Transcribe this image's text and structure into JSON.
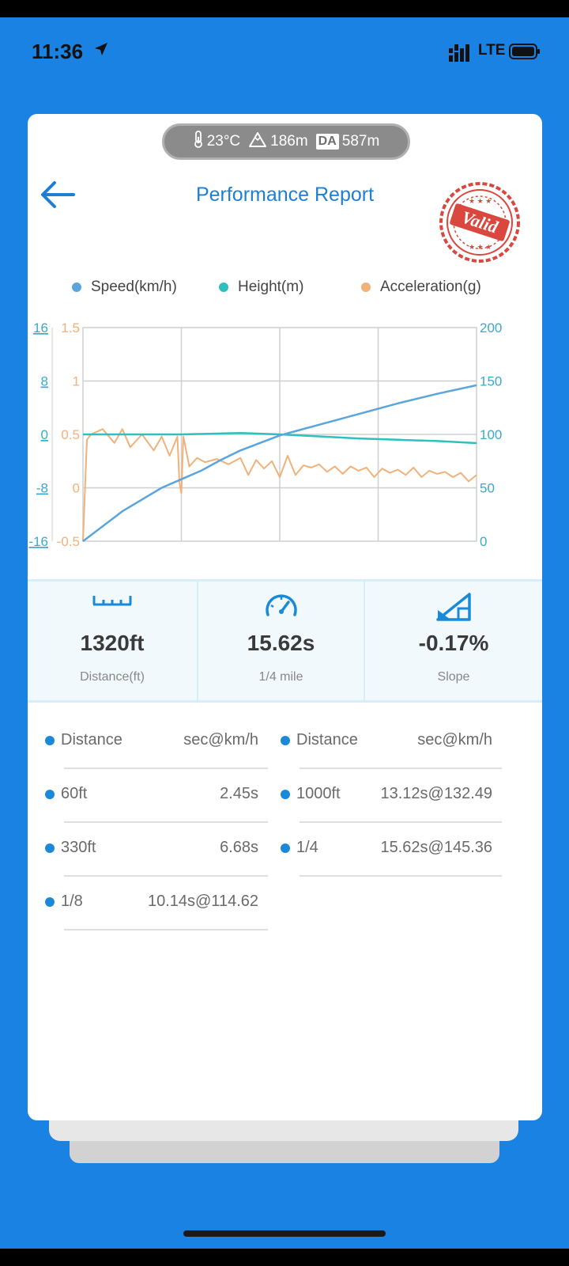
{
  "status_bar": {
    "time": "11:36",
    "network": "LTE"
  },
  "conditions": {
    "temperature": "23°C",
    "altitude": "186m",
    "density_altitude_label": "DA",
    "density_altitude": "587m"
  },
  "header": {
    "title": "Performance Report",
    "stamp_text": "Valid"
  },
  "legend": {
    "speed": "Speed(km/h)",
    "height": "Height(m)",
    "acceleration": "Acceleration(g)"
  },
  "colors": {
    "speed": "#5aa5dc",
    "height": "#2ec0bc",
    "acceleration": "#f0b27a",
    "accent": "#1a82e2"
  },
  "chart_data": {
    "type": "line",
    "x_ticks": 4,
    "left_axis_height_ticks": [
      "16",
      "8",
      "0",
      "-8",
      "-16"
    ],
    "left_axis_accel_ticks": [
      "1.5",
      "1",
      "0.5",
      "0",
      "-0.5"
    ],
    "right_axis_speed_ticks": [
      "200",
      "150",
      "100",
      "50",
      "0"
    ],
    "speed_range": [
      0,
      200
    ],
    "height_range": [
      -16,
      16
    ],
    "accel_range": [
      -0.5,
      1.5
    ],
    "series": [
      {
        "name": "Speed(km/h)",
        "axis": "right",
        "x": [
          0,
          0.05,
          0.1,
          0.15,
          0.2,
          0.25,
          0.3,
          0.35,
          0.4,
          0.5,
          0.6,
          0.7,
          0.8,
          0.9,
          1.0
        ],
        "values": [
          0,
          14,
          28,
          39,
          50,
          58,
          66,
          76,
          85,
          99,
          109,
          119,
          129,
          138,
          146
        ]
      },
      {
        "name": "Height(m)",
        "axis": "left",
        "x": [
          0,
          0.1,
          0.25,
          0.4,
          0.5,
          0.6,
          0.7,
          0.8,
          0.9,
          1.0
        ],
        "values": [
          0,
          0,
          0,
          0.2,
          0,
          -0.3,
          -0.6,
          -0.8,
          -1,
          -1.3
        ]
      },
      {
        "name": "Acceleration(g)",
        "axis": "left",
        "x": [
          0,
          0.01,
          0.02,
          0.05,
          0.08,
          0.1,
          0.12,
          0.15,
          0.18,
          0.2,
          0.22,
          0.24,
          0.245,
          0.25,
          0.255,
          0.27,
          0.29,
          0.31,
          0.34,
          0.37,
          0.4,
          0.42,
          0.44,
          0.46,
          0.48,
          0.5,
          0.52,
          0.54,
          0.56,
          0.58,
          0.6,
          0.62,
          0.64,
          0.66,
          0.68,
          0.7,
          0.72,
          0.74,
          0.76,
          0.78,
          0.8,
          0.82,
          0.84,
          0.86,
          0.88,
          0.9,
          0.92,
          0.94,
          0.96,
          0.98,
          1.0
        ],
        "values": [
          -0.5,
          0.45,
          0.5,
          0.55,
          0.42,
          0.55,
          0.38,
          0.5,
          0.35,
          0.48,
          0.3,
          0.48,
          0.05,
          -0.05,
          0.48,
          0.2,
          0.28,
          0.24,
          0.27,
          0.22,
          0.28,
          0.12,
          0.26,
          0.18,
          0.25,
          0.1,
          0.3,
          0.12,
          0.21,
          0.19,
          0.22,
          0.15,
          0.2,
          0.13,
          0.2,
          0.16,
          0.19,
          0.1,
          0.18,
          0.14,
          0.17,
          0.12,
          0.19,
          0.1,
          0.16,
          0.13,
          0.15,
          0.1,
          0.14,
          0.06,
          0.12
        ]
      }
    ]
  },
  "stats": [
    {
      "value": "1320ft",
      "label": "Distance(ft)",
      "icon": "ruler-icon"
    },
    {
      "value": "15.62s",
      "label": "1/4 mile",
      "icon": "speedometer-icon"
    },
    {
      "value": "-0.17%",
      "label": "Slope",
      "icon": "slope-icon"
    }
  ],
  "splits": {
    "left": [
      {
        "key": "Distance",
        "value": "sec@km/h"
      },
      {
        "key": "60ft",
        "value": "2.45s"
      },
      {
        "key": "330ft",
        "value": "6.68s"
      },
      {
        "key": "1/8",
        "value": "10.14s@114.62"
      }
    ],
    "right": [
      {
        "key": "Distance",
        "value": "sec@km/h"
      },
      {
        "key": "1000ft",
        "value": "13.12s@132.49"
      },
      {
        "key": "1/4",
        "value": "15.62s@145.36"
      }
    ]
  }
}
